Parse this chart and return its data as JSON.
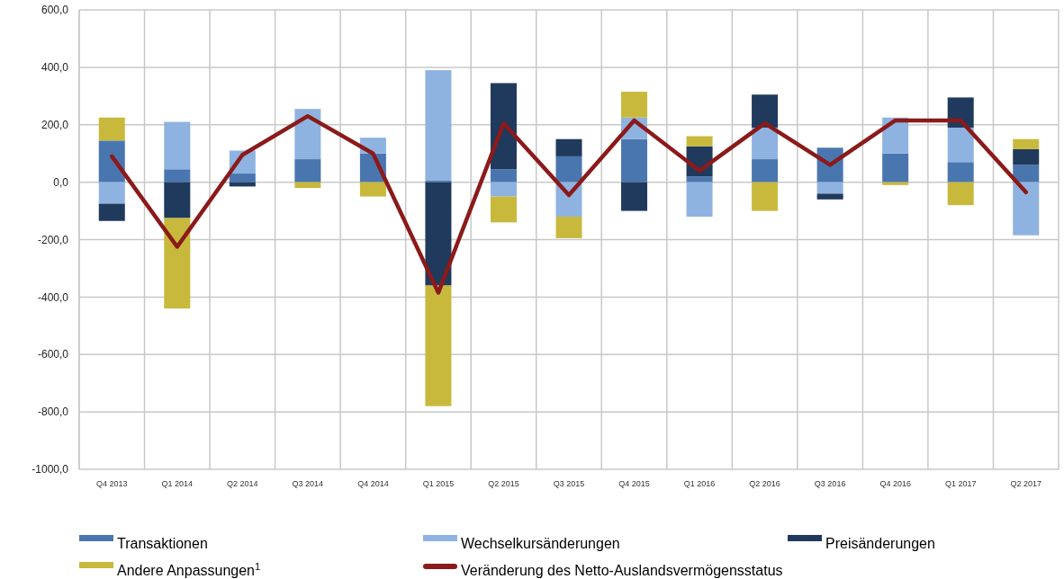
{
  "chart_data": {
    "type": "bar",
    "stacked": true,
    "categories": [
      "Q4 2013",
      "Q1 2014",
      "Q2 2014",
      "Q3 2014",
      "Q4 2014",
      "Q1 2015",
      "Q2 2015",
      "Q3 2015",
      "Q4 2015",
      "Q1 2016",
      "Q2 2016",
      "Q3 2016",
      "Q4 2016",
      "Q1 2017",
      "Q2 2017"
    ],
    "series": [
      {
        "name": "Transaktionen",
        "color": "#4a76b0",
        "values": [
          145,
          45,
          30,
          80,
          100,
          5,
          45,
          90,
          150,
          20,
          80,
          120,
          100,
          70,
          60
        ]
      },
      {
        "name": "Wechselkursänderungen",
        "color": "#8fb3e0",
        "values": [
          -75,
          165,
          80,
          175,
          55,
          385,
          -50,
          -120,
          75,
          -120,
          110,
          -40,
          125,
          120,
          -185
        ]
      },
      {
        "name": "Preisänderungen",
        "color": "#1f3a5c",
        "values": [
          -60,
          -125,
          -15,
          0,
          0,
          -360,
          300,
          60,
          -100,
          105,
          115,
          -20,
          0,
          105,
          55
        ]
      },
      {
        "name": "Andere Anpassungen$^{1}$",
        "color": "#c8b93c",
        "values": [
          80,
          -315,
          0,
          -20,
          -50,
          -420,
          -90,
          -75,
          90,
          35,
          -100,
          0,
          -10,
          -80,
          35
        ]
      },
      {
        "name": "Veränderung des Netto-Auslandsvermögensstatus",
        "type": "line",
        "color": "#8b1a1a",
        "values": [
          90,
          -225,
          95,
          230,
          100,
          -385,
          205,
          -45,
          215,
          40,
          205,
          60,
          215,
          215,
          -35
        ]
      }
    ],
    "ylim": [
      -1000,
      600
    ],
    "yticks": [
      {
        "value": -1000,
        "label": "-1000,0"
      },
      {
        "value": -800,
        "label": "-800,0"
      },
      {
        "value": -600,
        "label": "-600,0"
      },
      {
        "value": -400,
        "label": "-400,0"
      },
      {
        "value": -200,
        "label": "-200,0"
      },
      {
        "value": 0,
        "label": "0,0"
      },
      {
        "value": 200,
        "label": "200,0"
      },
      {
        "value": 400,
        "label": "400,0"
      },
      {
        "value": 600,
        "label": "600,0"
      }
    ],
    "grid": true,
    "legend": "bottom",
    "marker": "none",
    "line_style": "solid"
  }
}
